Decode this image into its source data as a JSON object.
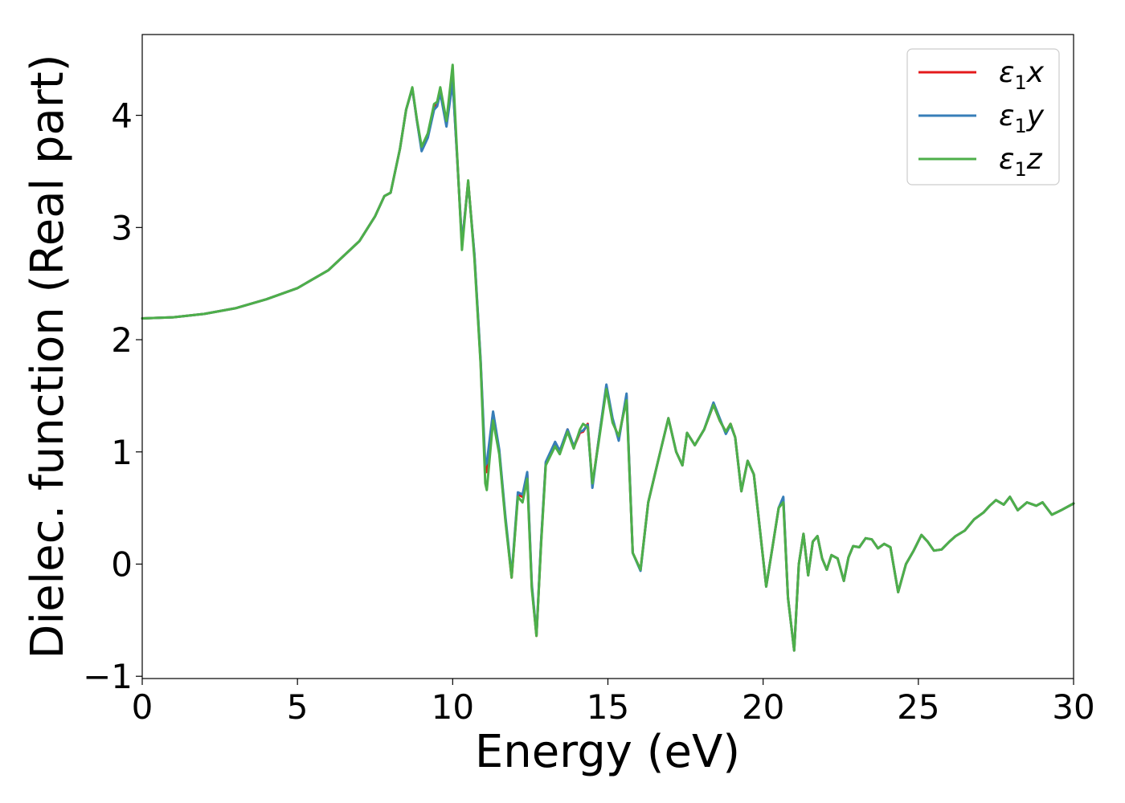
{
  "chart_data": {
    "type": "line",
    "title": "",
    "xlabel": "Energy (eV)",
    "ylabel": "Dielec. function (Real part)",
    "xlim": [
      0,
      30
    ],
    "ylim": [
      -1.02,
      4.72
    ],
    "xticks": [
      "0",
      "5",
      "10",
      "15",
      "20",
      "25",
      "30"
    ],
    "yticks": [
      "−1",
      "0",
      "1",
      "2",
      "3",
      "4"
    ],
    "grid": false,
    "legend_position": "top-right",
    "legend": [
      {
        "symbol": "ε",
        "sub": "1",
        "axis": "x",
        "color": "#e41a1c"
      },
      {
        "symbol": "ε",
        "sub": "1",
        "axis": "y",
        "color": "#377eb8"
      },
      {
        "symbol": "ε",
        "sub": "1",
        "axis": "z",
        "color": "#4daf4a"
      }
    ],
    "series": [
      {
        "name": "ε1x",
        "color": "#e41a1c",
        "x": [
          0,
          1,
          2,
          3,
          4,
          5,
          6,
          7,
          7.5,
          7.8,
          8.0,
          8.3,
          8.5,
          8.7,
          8.85,
          9.0,
          9.2,
          9.4,
          9.5,
          9.6,
          9.8,
          10.0,
          10.15,
          10.3,
          10.5,
          10.7,
          10.9,
          11.05,
          11.1,
          11.3,
          11.5,
          11.7,
          11.9,
          12.1,
          12.25,
          12.4,
          12.55,
          12.7,
          12.85,
          13.0,
          13.3,
          13.45,
          13.7,
          13.9,
          14.1,
          14.2,
          14.35,
          14.5,
          14.7,
          14.95,
          15.15,
          15.35,
          15.6,
          15.8,
          16.05,
          16.3,
          16.6,
          16.95,
          17.2,
          17.4,
          17.55,
          17.8,
          18.1,
          18.4,
          18.6,
          18.8,
          18.95,
          19.1,
          19.3,
          19.5,
          19.7,
          19.9,
          20.1,
          20.3,
          20.5,
          20.65,
          20.8,
          21.0,
          21.15,
          21.3,
          21.45,
          21.6,
          21.75,
          21.9,
          22.05,
          22.2,
          22.4,
          22.6,
          22.75,
          22.9,
          23.1,
          23.3,
          23.5,
          23.7,
          23.9,
          24.1,
          24.35,
          24.6,
          24.85,
          25.1,
          25.3,
          25.5,
          25.75,
          26.0,
          26.2,
          26.5,
          26.8,
          27.1,
          27.3,
          27.5,
          27.75,
          27.95,
          28.2,
          28.5,
          28.8,
          29.0,
          29.3,
          29.6,
          30
        ],
        "y": [
          2.19,
          2.2,
          2.23,
          2.28,
          2.36,
          2.46,
          2.62,
          2.88,
          3.1,
          3.28,
          3.31,
          3.7,
          4.05,
          4.24,
          3.95,
          3.7,
          3.82,
          4.07,
          4.1,
          4.22,
          3.92,
          4.32,
          3.6,
          2.85,
          3.41,
          2.75,
          1.8,
          0.82,
          0.82,
          1.35,
          1.0,
          0.4,
          -0.12,
          0.62,
          0.6,
          0.8,
          -0.2,
          -0.64,
          0.2,
          0.9,
          1.07,
          1.0,
          1.2,
          1.04,
          1.17,
          1.18,
          1.25,
          0.7,
          1.1,
          1.58,
          1.28,
          1.12,
          1.5,
          0.1,
          -0.05,
          0.55,
          0.9,
          1.3,
          1.0,
          0.88,
          1.17,
          1.06,
          1.2,
          1.42,
          1.28,
          1.18,
          1.25,
          1.13,
          0.65,
          0.92,
          0.8,
          0.3,
          -0.2,
          0.15,
          0.5,
          0.58,
          -0.3,
          -0.77,
          0.0,
          0.27,
          -0.1,
          0.2,
          0.25,
          0.05,
          -0.05,
          0.08,
          0.05,
          -0.15,
          0.06,
          0.16,
          0.15,
          0.23,
          0.22,
          0.14,
          0.18,
          0.15,
          -0.25,
          0.0,
          0.12,
          0.26,
          0.2,
          0.12,
          0.13,
          0.2,
          0.25,
          0.3,
          0.4,
          0.46,
          0.52,
          0.57,
          0.53,
          0.6,
          0.48,
          0.55,
          0.52,
          0.55,
          0.44,
          0.48,
          0.54
        ]
      },
      {
        "name": "ε1y",
        "color": "#377eb8",
        "x": [
          0,
          1,
          2,
          3,
          4,
          5,
          6,
          7,
          7.5,
          7.8,
          8.0,
          8.3,
          8.5,
          8.7,
          8.85,
          9.0,
          9.2,
          9.4,
          9.5,
          9.6,
          9.8,
          10.0,
          10.15,
          10.3,
          10.5,
          10.7,
          10.9,
          11.05,
          11.1,
          11.3,
          11.5,
          11.7,
          11.9,
          12.1,
          12.25,
          12.4,
          12.55,
          12.7,
          12.85,
          13.0,
          13.3,
          13.45,
          13.7,
          13.9,
          14.1,
          14.2,
          14.35,
          14.5,
          14.7,
          14.95,
          15.15,
          15.35,
          15.6,
          15.8,
          16.05,
          16.3,
          16.6,
          16.95,
          17.2,
          17.4,
          17.55,
          17.8,
          18.1,
          18.4,
          18.6,
          18.8,
          18.95,
          19.1,
          19.3,
          19.5,
          19.7,
          19.9,
          20.1,
          20.3,
          20.5,
          20.65,
          20.8,
          21.0,
          21.15,
          21.3,
          21.45,
          21.6,
          21.75,
          21.9,
          22.05,
          22.2,
          22.4,
          22.6,
          22.75,
          22.9,
          23.1,
          23.3,
          23.5,
          23.7,
          23.9,
          24.1,
          24.35,
          24.6,
          24.85,
          25.1,
          25.3,
          25.5,
          25.75,
          26.0,
          26.2,
          26.5,
          26.8,
          27.1,
          27.3,
          27.5,
          27.75,
          27.95,
          28.2,
          28.5,
          28.8,
          29.0,
          29.3,
          29.6,
          30
        ],
        "y": [
          2.19,
          2.2,
          2.23,
          2.28,
          2.36,
          2.46,
          2.62,
          2.88,
          3.1,
          3.28,
          3.31,
          3.7,
          4.05,
          4.24,
          3.95,
          3.68,
          3.8,
          4.05,
          4.08,
          4.2,
          3.9,
          4.3,
          3.6,
          2.86,
          3.4,
          2.76,
          1.82,
          0.88,
          0.9,
          1.36,
          1.02,
          0.42,
          -0.1,
          0.64,
          0.62,
          0.82,
          -0.18,
          -0.63,
          0.21,
          0.91,
          1.09,
          1.01,
          1.2,
          1.05,
          1.18,
          1.19,
          1.24,
          0.68,
          1.1,
          1.6,
          1.3,
          1.1,
          1.52,
          0.1,
          -0.06,
          0.55,
          0.9,
          1.3,
          1.0,
          0.88,
          1.17,
          1.06,
          1.2,
          1.44,
          1.3,
          1.16,
          1.24,
          1.13,
          0.65,
          0.92,
          0.8,
          0.3,
          -0.2,
          0.15,
          0.5,
          0.6,
          -0.3,
          -0.77,
          0.0,
          0.27,
          -0.1,
          0.2,
          0.25,
          0.05,
          -0.05,
          0.08,
          0.05,
          -0.15,
          0.06,
          0.16,
          0.15,
          0.23,
          0.22,
          0.14,
          0.18,
          0.15,
          -0.25,
          0.0,
          0.12,
          0.26,
          0.2,
          0.12,
          0.13,
          0.2,
          0.25,
          0.3,
          0.4,
          0.46,
          0.52,
          0.57,
          0.53,
          0.6,
          0.48,
          0.55,
          0.52,
          0.55,
          0.44,
          0.48,
          0.54
        ]
      },
      {
        "name": "ε1z",
        "color": "#4daf4a",
        "x": [
          0,
          1,
          2,
          3,
          4,
          5,
          6,
          7,
          7.5,
          7.8,
          8.0,
          8.3,
          8.5,
          8.7,
          8.85,
          9.0,
          9.2,
          9.4,
          9.5,
          9.6,
          9.8,
          10.0,
          10.15,
          10.3,
          10.5,
          10.7,
          10.9,
          11.05,
          11.1,
          11.3,
          11.5,
          11.7,
          11.9,
          12.1,
          12.25,
          12.4,
          12.55,
          12.7,
          12.85,
          13.0,
          13.3,
          13.45,
          13.7,
          13.9,
          14.1,
          14.2,
          14.35,
          14.5,
          14.7,
          14.95,
          15.15,
          15.35,
          15.6,
          15.8,
          16.05,
          16.3,
          16.6,
          16.95,
          17.2,
          17.4,
          17.55,
          17.8,
          18.1,
          18.4,
          18.6,
          18.8,
          18.95,
          19.1,
          19.3,
          19.5,
          19.7,
          19.9,
          20.1,
          20.3,
          20.5,
          20.65,
          20.8,
          21.0,
          21.15,
          21.3,
          21.45,
          21.6,
          21.75,
          21.9,
          22.05,
          22.2,
          22.4,
          22.6,
          22.75,
          22.9,
          23.1,
          23.3,
          23.5,
          23.7,
          23.9,
          24.1,
          24.35,
          24.6,
          24.85,
          25.1,
          25.3,
          25.5,
          25.75,
          26.0,
          26.2,
          26.5,
          26.8,
          27.1,
          27.3,
          27.5,
          27.75,
          27.95,
          28.2,
          28.5,
          28.8,
          29.0,
          29.3,
          29.6,
          30
        ],
        "y": [
          2.19,
          2.2,
          2.23,
          2.28,
          2.36,
          2.46,
          2.62,
          2.88,
          3.1,
          3.28,
          3.31,
          3.7,
          4.05,
          4.25,
          3.96,
          3.72,
          3.84,
          4.1,
          4.12,
          4.25,
          3.95,
          4.45,
          3.62,
          2.8,
          3.42,
          2.72,
          1.78,
          0.72,
          0.66,
          1.28,
          0.98,
          0.38,
          -0.12,
          0.6,
          0.55,
          0.76,
          -0.22,
          -0.64,
          0.18,
          0.88,
          1.05,
          0.98,
          1.18,
          1.03,
          1.2,
          1.25,
          1.22,
          0.72,
          1.08,
          1.56,
          1.26,
          1.14,
          1.46,
          0.1,
          -0.05,
          0.55,
          0.9,
          1.3,
          1.0,
          0.88,
          1.17,
          1.06,
          1.2,
          1.42,
          1.28,
          1.18,
          1.25,
          1.13,
          0.65,
          0.92,
          0.8,
          0.3,
          -0.2,
          0.15,
          0.5,
          0.55,
          -0.3,
          -0.77,
          0.0,
          0.27,
          -0.1,
          0.2,
          0.25,
          0.05,
          -0.05,
          0.08,
          0.05,
          -0.15,
          0.06,
          0.16,
          0.15,
          0.23,
          0.22,
          0.14,
          0.18,
          0.15,
          -0.25,
          0.0,
          0.12,
          0.26,
          0.2,
          0.12,
          0.13,
          0.2,
          0.25,
          0.3,
          0.4,
          0.46,
          0.52,
          0.57,
          0.53,
          0.6,
          0.48,
          0.55,
          0.52,
          0.55,
          0.44,
          0.48,
          0.54
        ]
      }
    ]
  }
}
